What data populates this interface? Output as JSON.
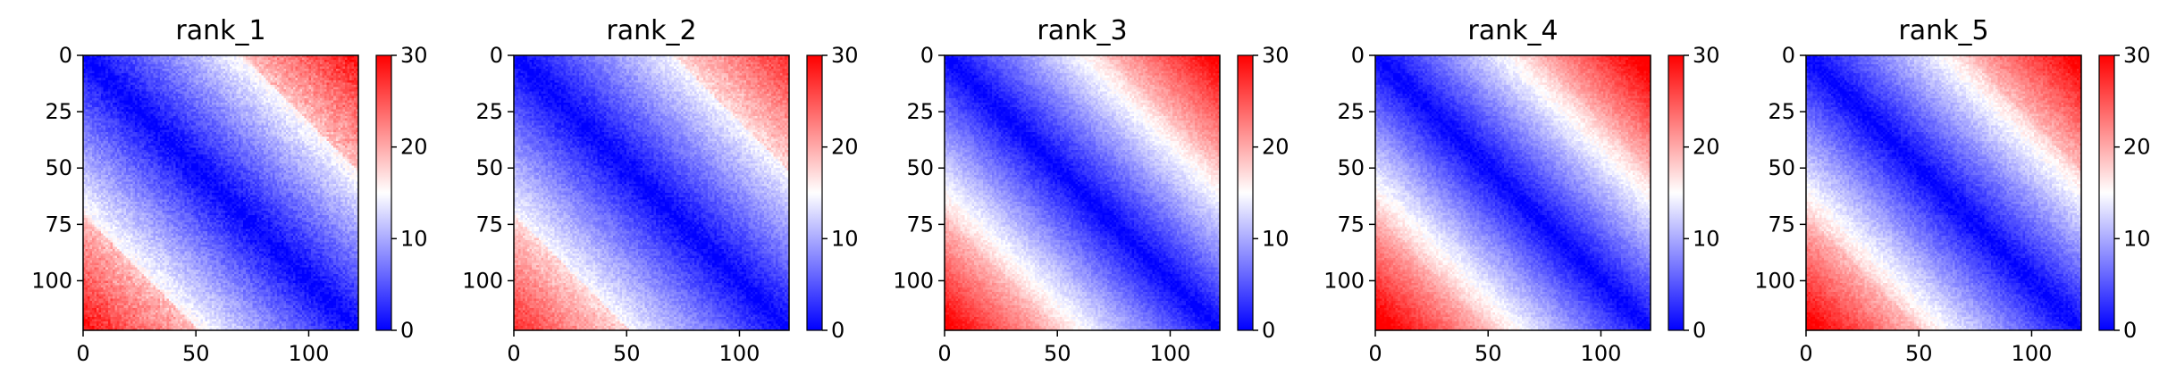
{
  "chart_data": [
    {
      "type": "heatmap",
      "title": "rank_1",
      "n": 122,
      "x_ticks": [
        0,
        50,
        100
      ],
      "y_ticks": [
        0,
        25,
        50,
        75,
        100
      ],
      "colorbar": {
        "ticks": [
          0,
          10,
          20,
          30
        ],
        "range": [
          0,
          30
        ],
        "colormap": "bwr"
      },
      "pattern": {
        "slope": 0.22,
        "noise": 3.0,
        "block_boost": 4.0
      }
    },
    {
      "type": "heatmap",
      "title": "rank_2",
      "n": 122,
      "x_ticks": [
        0,
        50,
        100
      ],
      "y_ticks": [
        0,
        25,
        50,
        75,
        100
      ],
      "colorbar": {
        "ticks": [
          0,
          10,
          20,
          30
        ],
        "range": [
          0,
          30
        ],
        "colormap": "bwr"
      },
      "pattern": {
        "slope": 0.21,
        "noise": 2.6,
        "block_boost": 3.0
      }
    },
    {
      "type": "heatmap",
      "title": "rank_3",
      "n": 122,
      "x_ticks": [
        0,
        50,
        100
      ],
      "y_ticks": [
        0,
        25,
        50,
        75,
        100
      ],
      "colorbar": {
        "ticks": [
          0,
          10,
          20,
          30
        ],
        "range": [
          0,
          30
        ],
        "colormap": "bwr"
      },
      "pattern": {
        "slope": 0.25,
        "noise": 2.2,
        "block_boost": 1.0
      }
    },
    {
      "type": "heatmap",
      "title": "rank_4",
      "n": 122,
      "x_ticks": [
        0,
        50,
        100
      ],
      "y_ticks": [
        0,
        25,
        50,
        75,
        100
      ],
      "colorbar": {
        "ticks": [
          0,
          10,
          20,
          30
        ],
        "range": [
          0,
          30
        ],
        "colormap": "bwr"
      },
      "pattern": {
        "slope": 0.26,
        "noise": 2.2,
        "block_boost": 1.0
      }
    },
    {
      "type": "heatmap",
      "title": "rank_5",
      "n": 122,
      "x_ticks": [
        0,
        50,
        100
      ],
      "y_ticks": [
        0,
        25,
        50,
        75,
        100
      ],
      "colorbar": {
        "ticks": [
          0,
          10,
          20,
          30
        ],
        "range": [
          0,
          30
        ],
        "colormap": "bwr"
      },
      "pattern": {
        "slope": 0.25,
        "noise": 2.4,
        "block_boost": 1.5
      }
    }
  ]
}
